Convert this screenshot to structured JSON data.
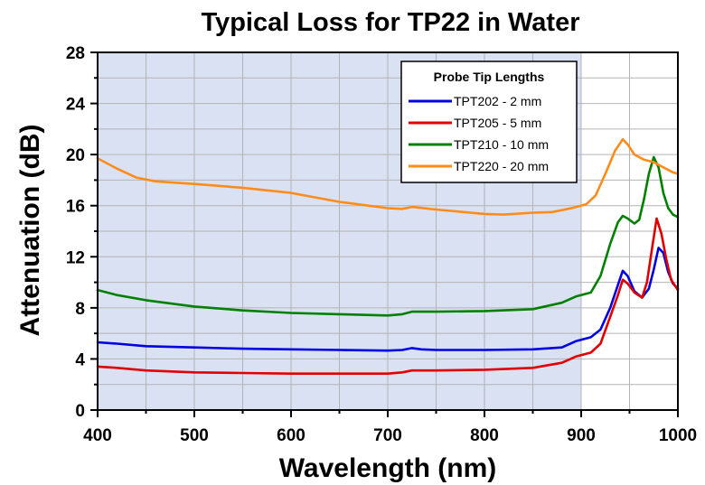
{
  "chart_data": {
    "type": "line",
    "title": "Typical Loss for TP22 in Water",
    "xlabel": "Wavelength (nm)",
    "ylabel": "Attenuation (dB)",
    "xlim": [
      400,
      1000
    ],
    "ylim": [
      0,
      28
    ],
    "x_ticks": [
      "400",
      "500",
      "600",
      "700",
      "800",
      "900",
      "1000"
    ],
    "y_ticks": [
      "0",
      "4",
      "8",
      "12",
      "16",
      "20",
      "24",
      "28"
    ],
    "grid": true,
    "shaded_region": {
      "x_from": 400,
      "x_to": 900,
      "color": "#d9e1f2"
    },
    "legend": {
      "title": "Probe Tip Lengths",
      "position": "top-right"
    },
    "series": [
      {
        "name": "TPT202 - 2 mm",
        "color": "#0000e0",
        "points": [
          [
            400,
            5.3
          ],
          [
            420,
            5.2
          ],
          [
            450,
            5.0
          ],
          [
            500,
            4.9
          ],
          [
            550,
            4.8
          ],
          [
            600,
            4.75
          ],
          [
            650,
            4.7
          ],
          [
            700,
            4.65
          ],
          [
            715,
            4.7
          ],
          [
            725,
            4.85
          ],
          [
            735,
            4.75
          ],
          [
            750,
            4.7
          ],
          [
            800,
            4.7
          ],
          [
            850,
            4.75
          ],
          [
            880,
            4.9
          ],
          [
            895,
            5.4
          ],
          [
            910,
            5.7
          ],
          [
            920,
            6.3
          ],
          [
            930,
            8.0
          ],
          [
            938,
            9.8
          ],
          [
            943,
            10.9
          ],
          [
            948,
            10.5
          ],
          [
            955,
            9.3
          ],
          [
            963,
            8.8
          ],
          [
            970,
            9.5
          ],
          [
            975,
            11.0
          ],
          [
            980,
            12.7
          ],
          [
            985,
            12.3
          ],
          [
            990,
            10.8
          ],
          [
            995,
            9.9
          ],
          [
            1000,
            9.5
          ]
        ]
      },
      {
        "name": "TPT205 - 5 mm",
        "color": "#e00000",
        "points": [
          [
            400,
            3.4
          ],
          [
            420,
            3.3
          ],
          [
            450,
            3.1
          ],
          [
            500,
            2.95
          ],
          [
            550,
            2.9
          ],
          [
            600,
            2.85
          ],
          [
            650,
            2.85
          ],
          [
            700,
            2.85
          ],
          [
            715,
            2.95
          ],
          [
            725,
            3.1
          ],
          [
            750,
            3.1
          ],
          [
            800,
            3.15
          ],
          [
            850,
            3.3
          ],
          [
            880,
            3.7
          ],
          [
            895,
            4.2
          ],
          [
            910,
            4.5
          ],
          [
            920,
            5.2
          ],
          [
            930,
            7.3
          ],
          [
            938,
            9.0
          ],
          [
            943,
            10.2
          ],
          [
            948,
            9.9
          ],
          [
            955,
            9.2
          ],
          [
            963,
            8.8
          ],
          [
            968,
            10.0
          ],
          [
            973,
            12.5
          ],
          [
            978,
            15.0
          ],
          [
            983,
            13.8
          ],
          [
            988,
            11.8
          ],
          [
            993,
            10.2
          ],
          [
            1000,
            9.4
          ]
        ]
      },
      {
        "name": "TPT210 - 10 mm",
        "color": "#008000",
        "points": [
          [
            400,
            9.4
          ],
          [
            420,
            9.0
          ],
          [
            450,
            8.6
          ],
          [
            500,
            8.1
          ],
          [
            550,
            7.8
          ],
          [
            600,
            7.6
          ],
          [
            650,
            7.5
          ],
          [
            700,
            7.4
          ],
          [
            715,
            7.5
          ],
          [
            725,
            7.7
          ],
          [
            750,
            7.7
          ],
          [
            800,
            7.75
          ],
          [
            850,
            7.9
          ],
          [
            880,
            8.4
          ],
          [
            895,
            8.9
          ],
          [
            910,
            9.2
          ],
          [
            920,
            10.5
          ],
          [
            930,
            13.0
          ],
          [
            938,
            14.7
          ],
          [
            943,
            15.2
          ],
          [
            948,
            15.0
          ],
          [
            955,
            14.6
          ],
          [
            960,
            14.9
          ],
          [
            965,
            16.5
          ],
          [
            970,
            18.5
          ],
          [
            975,
            19.8
          ],
          [
            980,
            19.0
          ],
          [
            985,
            17.0
          ],
          [
            990,
            15.8
          ],
          [
            995,
            15.3
          ],
          [
            1000,
            15.1
          ]
        ]
      },
      {
        "name": "TPT220 - 20 mm",
        "color": "#ff8c1a",
        "points": [
          [
            400,
            19.7
          ],
          [
            410,
            19.3
          ],
          [
            420,
            18.9
          ],
          [
            440,
            18.2
          ],
          [
            460,
            17.9
          ],
          [
            500,
            17.7
          ],
          [
            550,
            17.4
          ],
          [
            600,
            17.0
          ],
          [
            650,
            16.3
          ],
          [
            700,
            15.8
          ],
          [
            715,
            15.75
          ],
          [
            725,
            15.9
          ],
          [
            750,
            15.7
          ],
          [
            800,
            15.35
          ],
          [
            820,
            15.3
          ],
          [
            850,
            15.45
          ],
          [
            870,
            15.5
          ],
          [
            890,
            15.8
          ],
          [
            905,
            16.1
          ],
          [
            915,
            16.8
          ],
          [
            925,
            18.5
          ],
          [
            935,
            20.3
          ],
          [
            943,
            21.2
          ],
          [
            948,
            20.8
          ],
          [
            955,
            20.0
          ],
          [
            965,
            19.6
          ],
          [
            975,
            19.4
          ],
          [
            985,
            19.0
          ],
          [
            995,
            18.6
          ],
          [
            1000,
            18.5
          ]
        ]
      }
    ]
  }
}
